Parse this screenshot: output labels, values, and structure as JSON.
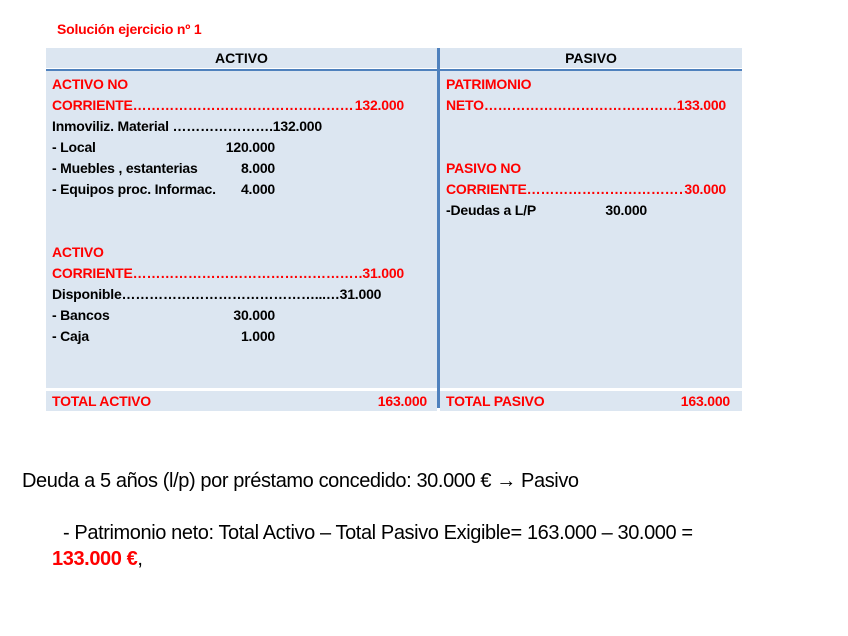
{
  "page": {
    "title": "Solución ejercicio nº 1"
  },
  "table": {
    "header_activo": "ACTIVO",
    "header_pasivo": "PASIVO",
    "leader_dots": "……………………………………………………………………………………………………",
    "activo_rows": [
      {
        "style": "red",
        "text": "ACTIVO NO"
      },
      {
        "style": "leader",
        "label": "CORRIENTE",
        "value": "132.000"
      },
      {
        "style": "black",
        "text": "Inmoviliz. Material ………………….132.000"
      },
      {
        "style": "item",
        "label": "- Local",
        "value": "120.000"
      },
      {
        "style": "item",
        "label": "- Muebles , estanterias",
        "value": "8.000"
      },
      {
        "style": "item",
        "label": "- Equipos proc. Informac.",
        "value": "4.000"
      },
      {
        "style": "blank"
      },
      {
        "style": "blank"
      },
      {
        "style": "red",
        "text": "ACTIVO"
      },
      {
        "style": "leader",
        "label": "CORRIENTE",
        "value": "31.000"
      },
      {
        "style": "black",
        "text": "Disponible……………………………………...…31.000"
      },
      {
        "style": "item",
        "label": "- Bancos",
        "value": "30.000"
      },
      {
        "style": "item",
        "label": "- Caja",
        "value": "1.000"
      }
    ],
    "pasivo_rows": [
      {
        "style": "red",
        "text": "PATRIMONIO"
      },
      {
        "style": "leader",
        "label": "NETO",
        "value": "133.000"
      },
      {
        "style": "blank"
      },
      {
        "style": "blank"
      },
      {
        "style": "red",
        "text": "PASIVO NO"
      },
      {
        "style": "leader",
        "label": "CORRIENTE",
        "value": "30.000"
      },
      {
        "style": "item",
        "label": "-Deudas a L/P",
        "value": "30.000"
      }
    ],
    "total_activo": {
      "label": "TOTAL ACTIVO",
      "value": "163.000"
    },
    "total_pasivo": {
      "label": "TOTAL PASIVO",
      "value": "163.000"
    }
  },
  "notes": {
    "line1": "Deuda a 5 años (l/p) por préstamo concedido: 30.000 € → Pasivo",
    "line2": "- Patrimonio neto: Total Activo – Total Pasivo Exigible= 163.000 – 30.000 =",
    "line3_value": "133.000 €",
    "line3_suffix": ","
  }
}
